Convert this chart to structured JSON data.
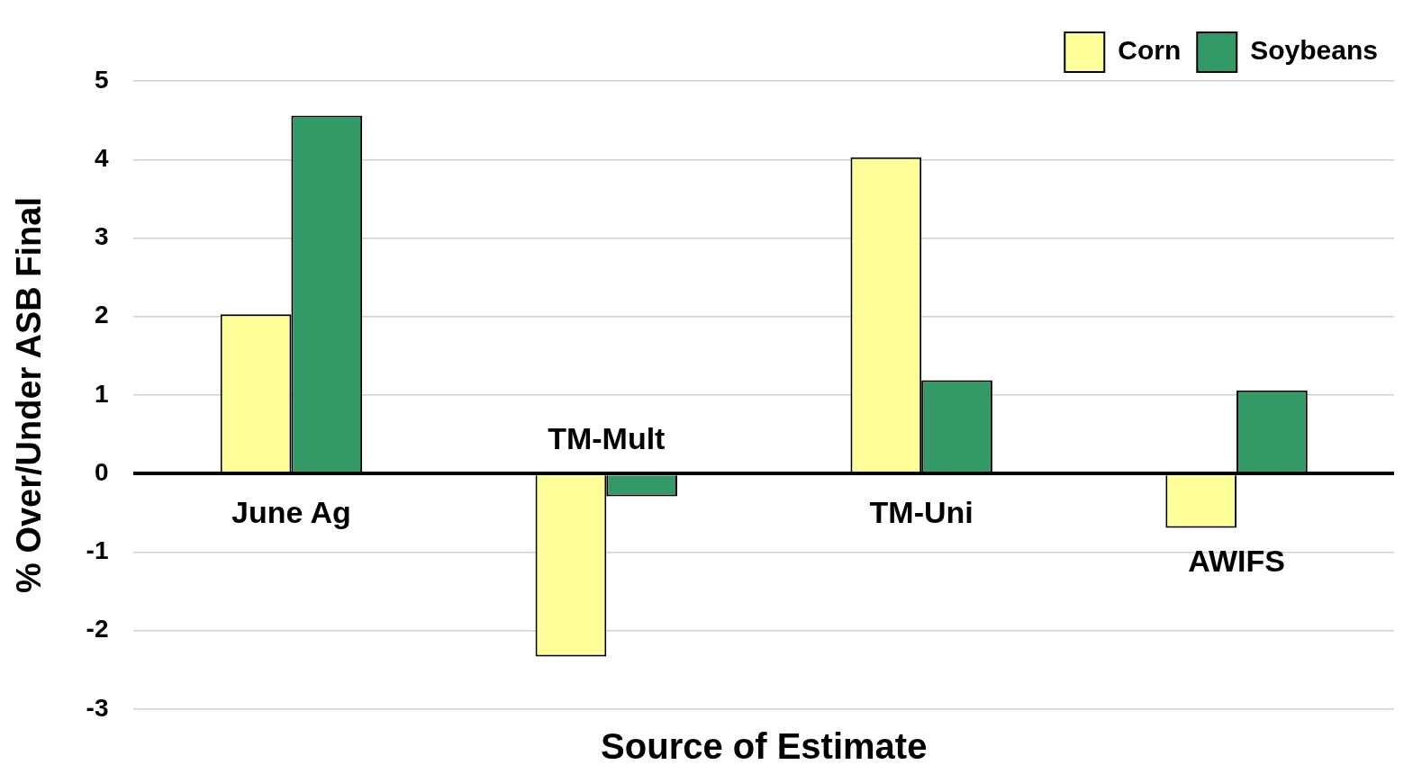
{
  "chart_data": {
    "type": "bar",
    "xlabel": "Source of Estimate",
    "ylabel": "% Over/Under ASB Final",
    "categories": [
      "June Ag",
      "TM-Mult",
      "TM-Uni",
      "AWIFS"
    ],
    "series": [
      {
        "name": "Corn",
        "color": "#ffff99",
        "values": [
          2.03,
          -2.33,
          4.03,
          -0.69
        ]
      },
      {
        "name": "Soybeans",
        "color": "#339966",
        "values": [
          4.56,
          -0.29,
          1.19,
          1.06
        ]
      }
    ],
    "ylim": [
      -3,
      5
    ],
    "yticks": [
      -3,
      -2,
      -1,
      0,
      1,
      2,
      3,
      4,
      5
    ],
    "grid": "y",
    "legend": "top right"
  }
}
